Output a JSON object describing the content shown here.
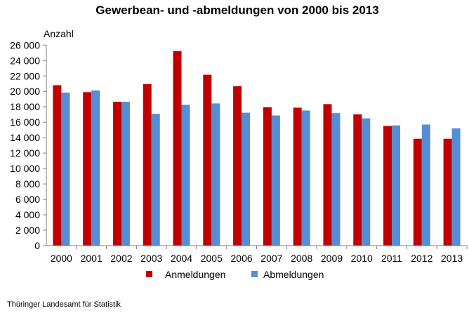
{
  "chart_data": {
    "type": "bar",
    "title": "Gewerbean- und -abmeldungen von 2000 bis 2013",
    "ylabel": "Anzahl",
    "xlabel": "",
    "ylim": [
      0,
      26000
    ],
    "yticks": [
      "0",
      "2 000",
      "4 000",
      "6 000",
      "8 000",
      "10 000",
      "12 000",
      "14 000",
      "16 000",
      "18 000",
      "20 000",
      "22 000",
      "24 000",
      "26 000"
    ],
    "categories": [
      "2000",
      "2001",
      "2002",
      "2003",
      "2004",
      "2005",
      "2006",
      "2007",
      "2008",
      "2009",
      "2010",
      "2011",
      "2012",
      "2013"
    ],
    "series": [
      {
        "name": "Anmeldungen",
        "color": "#c00000",
        "values": [
          20800,
          19900,
          18650,
          20950,
          25230,
          22160,
          20680,
          17950,
          17890,
          18350,
          17020,
          15520,
          13860,
          13860
        ]
      },
      {
        "name": "Abmeldungen",
        "color": "#558ed5",
        "values": [
          19850,
          20130,
          18650,
          17090,
          18260,
          18440,
          17240,
          16880,
          17520,
          17180,
          16510,
          15590,
          15700,
          15210
        ]
      }
    ],
    "legend_position": "bottom",
    "grid": false
  },
  "source": "Thüringer Landesamt für Statistik"
}
